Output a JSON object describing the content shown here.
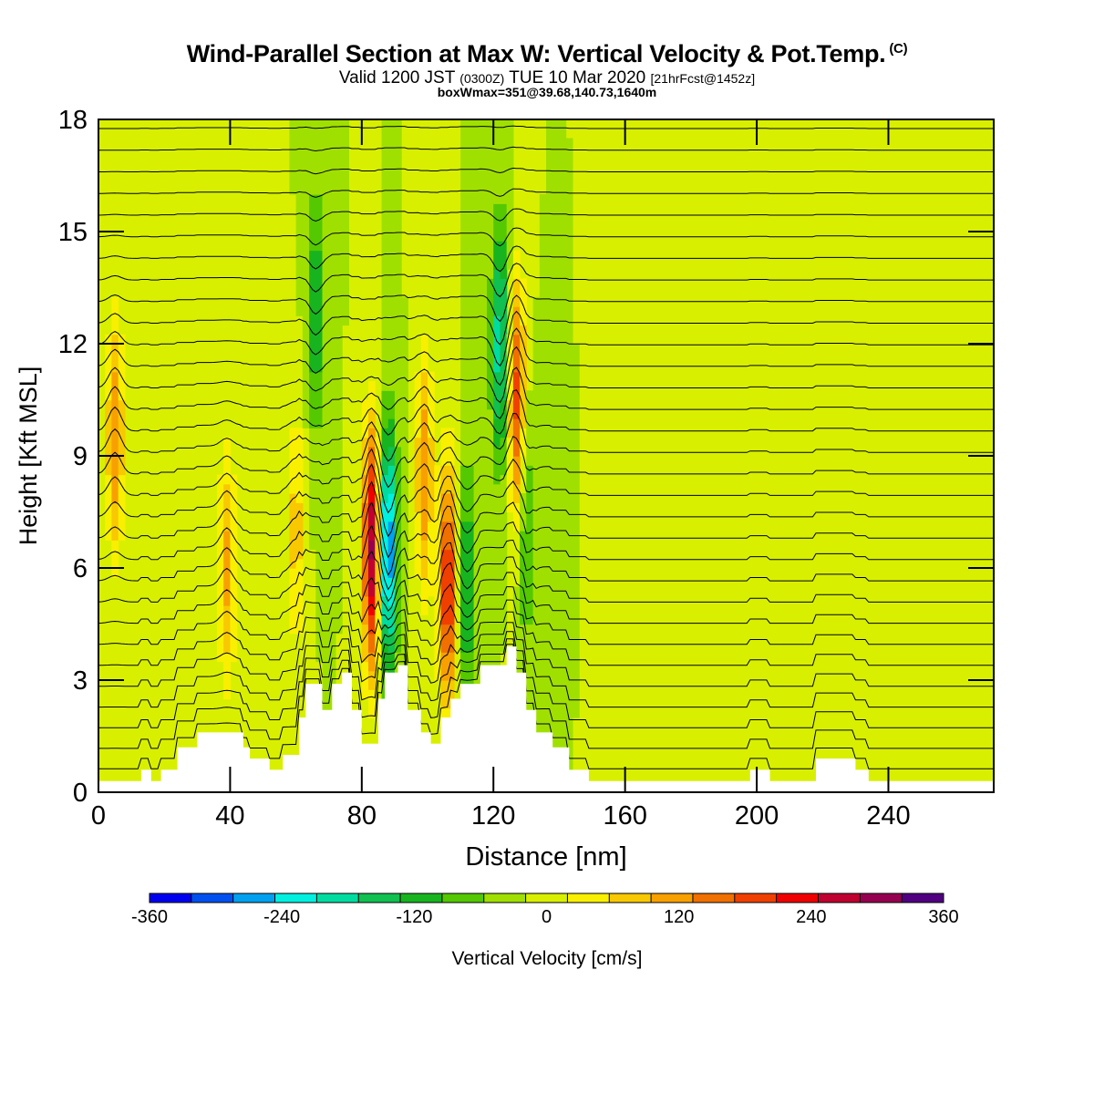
{
  "header": {
    "title": "Wind-Parallel Section at Max W: Vertical Velocity & Pot.Temp.",
    "copyright": "(C)",
    "valid_prefix": "Valid 1200 JST",
    "valid_utc": "(0300Z)",
    "valid_date": "TUE 10 Mar 2020",
    "forecast_info": "[21hrFcst@1452z]",
    "box_info": "boxWmax=351@39.68,140.73,1640m"
  },
  "chart_data": {
    "type": "heatmap",
    "xlabel": "Distance [nm]",
    "ylabel": "Height [Kft MSL]",
    "xlim": [
      0,
      272
    ],
    "ylim": [
      0,
      18
    ],
    "x_ticks": [
      "0",
      "40",
      "80",
      "120",
      "160",
      "200",
      "240"
    ],
    "y_ticks": [
      "0",
      "3",
      "6",
      "9",
      "12",
      "15",
      "18"
    ],
    "x_tick_values": [
      0,
      40,
      80,
      120,
      160,
      200,
      240
    ],
    "y_tick_values": [
      0,
      3,
      6,
      9,
      12,
      15,
      18
    ],
    "terrain": [
      [
        0,
        0.3
      ],
      [
        13,
        0.3
      ],
      [
        13,
        0.6
      ],
      [
        16,
        0.6
      ],
      [
        16,
        0.3
      ],
      [
        19,
        0.3
      ],
      [
        19,
        0.6
      ],
      [
        24,
        0.6
      ],
      [
        24,
        1.2
      ],
      [
        30,
        1.2
      ],
      [
        30,
        1.6
      ],
      [
        44,
        1.6
      ],
      [
        44,
        1.2
      ],
      [
        46,
        1.2
      ],
      [
        46,
        0.9
      ],
      [
        52,
        0.9
      ],
      [
        52,
        0.6
      ],
      [
        56,
        0.6
      ],
      [
        56,
        1.0
      ],
      [
        61,
        1.0
      ],
      [
        61,
        2.0
      ],
      [
        63,
        2.0
      ],
      [
        63,
        2.9
      ],
      [
        68,
        2.9
      ],
      [
        68,
        2.2
      ],
      [
        71,
        2.2
      ],
      [
        71,
        2.9
      ],
      [
        74,
        2.9
      ],
      [
        74,
        3.2
      ],
      [
        77,
        3.2
      ],
      [
        77,
        2.2
      ],
      [
        80,
        2.2
      ],
      [
        80,
        1.3
      ],
      [
        85,
        1.3
      ],
      [
        85,
        2.5
      ],
      [
        87,
        2.5
      ],
      [
        87,
        3.2
      ],
      [
        91,
        3.2
      ],
      [
        91,
        3.4
      ],
      [
        94,
        3.4
      ],
      [
        94,
        2.2
      ],
      [
        98,
        2.2
      ],
      [
        98,
        1.6
      ],
      [
        101,
        1.6
      ],
      [
        101,
        1.3
      ],
      [
        104,
        1.3
      ],
      [
        104,
        2.0
      ],
      [
        107,
        2.0
      ],
      [
        107,
        2.5
      ],
      [
        110,
        2.5
      ],
      [
        110,
        2.9
      ],
      [
        116,
        2.9
      ],
      [
        116,
        3.4
      ],
      [
        124,
        3.4
      ],
      [
        124,
        3.9
      ],
      [
        127,
        3.9
      ],
      [
        127,
        3.2
      ],
      [
        130,
        3.2
      ],
      [
        130,
        2.2
      ],
      [
        133,
        2.2
      ],
      [
        133,
        1.6
      ],
      [
        138,
        1.6
      ],
      [
        138,
        1.2
      ],
      [
        143,
        1.2
      ],
      [
        143,
        0.6
      ],
      [
        149,
        0.6
      ],
      [
        149,
        0.3
      ],
      [
        198,
        0.3
      ],
      [
        198,
        0.6
      ],
      [
        204,
        0.6
      ],
      [
        204,
        0.3
      ],
      [
        218,
        0.3
      ],
      [
        218,
        0.9
      ],
      [
        230,
        0.9
      ],
      [
        230,
        0.6
      ],
      [
        234,
        0.6
      ],
      [
        234,
        0.3
      ],
      [
        272,
        0.3
      ]
    ],
    "w_max": [
      {
        "x": 5,
        "z": 9.5,
        "w": 160
      },
      {
        "x": 39,
        "z": 6,
        "w": 130
      },
      {
        "x": 60,
        "z": 7,
        "w": 100
      },
      {
        "x": 66,
        "z": 12.8,
        "w": -120
      },
      {
        "x": 83,
        "z": 6.5,
        "w": 330
      },
      {
        "x": 88,
        "z": 6.5,
        "w": -300
      },
      {
        "x": 99,
        "z": 8.5,
        "w": 160
      },
      {
        "x": 106,
        "z": 5.5,
        "w": 260
      },
      {
        "x": 112,
        "z": 5.5,
        "w": -130
      },
      {
        "x": 122,
        "z": 12,
        "w": -200
      },
      {
        "x": 127,
        "z": 10.5,
        "w": 220
      },
      {
        "x": 130,
        "z": 7,
        "w": -90
      }
    ],
    "theta_contour_count": 34
  },
  "colorbar": {
    "label": "Vertical Velocity [cm/s]",
    "min": -360,
    "max": 360,
    "step": 40,
    "tick_labels": [
      "-360",
      "-240",
      "-120",
      "0",
      "120",
      "240",
      "360"
    ],
    "tick_values": [
      -360,
      -240,
      -120,
      0,
      120,
      240,
      360
    ],
    "colors": [
      "#0000f0",
      "#0050f0",
      "#00a0f0",
      "#00f0e0",
      "#00dca0",
      "#10c050",
      "#18b420",
      "#54c800",
      "#a0e000",
      "#d8f000",
      "#f8f000",
      "#f8c800",
      "#f8a000",
      "#f07000",
      "#f04000",
      "#f00000",
      "#c00030",
      "#960050",
      "#500080"
    ]
  }
}
